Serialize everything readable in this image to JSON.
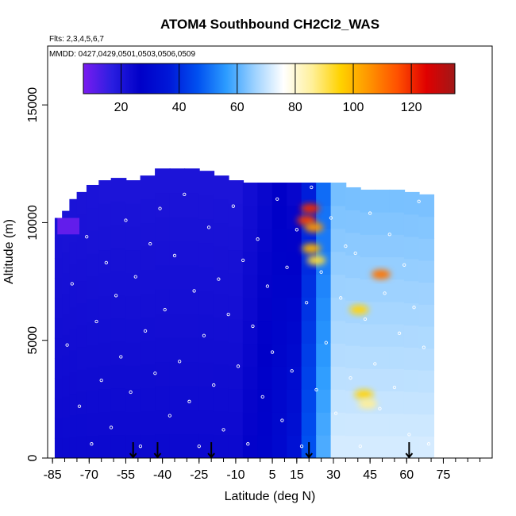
{
  "chart_data": {
    "type": "heatmap",
    "title": "ATOM4 Southbound CH2Cl2_WAS",
    "flights_note": "Flts: 2,3,4,5,6,7",
    "dates_note": "MMDD: 0427,0429,0501,0503,0506,0509",
    "xlabel": "Latitude (deg N)",
    "ylabel": "Altitude (m)",
    "xlim": [
      -87,
      95
    ],
    "ylim": [
      0,
      17500
    ],
    "x_ticks": [
      -85,
      -70,
      -55,
      -40,
      -25,
      -10,
      5,
      15,
      30,
      45,
      60,
      75
    ],
    "x_tick_labels": [
      "-85",
      "-70",
      "-55",
      "-40",
      "-25",
      "-10",
      "5",
      "15",
      "30",
      "45",
      "60",
      "75"
    ],
    "y_ticks": [
      0,
      5000,
      10000,
      15000
    ],
    "y_tick_labels": [
      "0",
      "5000",
      "10000",
      "15000"
    ],
    "colorbar": {
      "min": 7,
      "max": 135,
      "ticks": [
        20,
        40,
        60,
        80,
        100,
        120
      ],
      "tick_labels": [
        "20",
        "40",
        "60",
        "80",
        "100",
        "120"
      ],
      "colors": [
        "#7a1cf0",
        "#2a1ee0",
        "#0000c8",
        "#0018d8",
        "#0050f0",
        "#2c9cff",
        "#9ed2ff",
        "#ffffff",
        "#fff09a",
        "#ffd200",
        "#ff9400",
        "#ff5000",
        "#e00000",
        "#a01818"
      ]
    },
    "field_columns": [
      {
        "lat": -81,
        "top": 10200,
        "base": 0
      },
      {
        "lat": -78,
        "top": 10500,
        "base": 0
      },
      {
        "lat": -75,
        "top": 11000,
        "base": 0
      },
      {
        "lat": -72,
        "top": 11300,
        "base": 0
      },
      {
        "lat": -68,
        "top": 11600,
        "base": 0
      },
      {
        "lat": -63,
        "top": 11800,
        "base": 0
      },
      {
        "lat": -58,
        "top": 11900,
        "base": 0
      },
      {
        "lat": -52,
        "top": 11800,
        "base": 0
      },
      {
        "lat": -46,
        "top": 12000,
        "base": 0
      },
      {
        "lat": -40,
        "top": 12300,
        "base": 0
      },
      {
        "lat": -34,
        "top": 12300,
        "base": 0
      },
      {
        "lat": -28,
        "top": 12300,
        "base": 0
      },
      {
        "lat": -22,
        "top": 12200,
        "base": 0
      },
      {
        "lat": -16,
        "top": 12000,
        "base": 0
      },
      {
        "lat": -10,
        "top": 11800,
        "base": 0
      },
      {
        "lat": -4,
        "top": 11700,
        "base": 0
      },
      {
        "lat": 2,
        "top": 11700,
        "base": 0
      },
      {
        "lat": 8,
        "top": 11700,
        "base": 0
      },
      {
        "lat": 14,
        "top": 11700,
        "base": 0
      },
      {
        "lat": 20,
        "top": 11700,
        "base": 0
      },
      {
        "lat": 26,
        "top": 11700,
        "base": 0
      },
      {
        "lat": 32,
        "top": 11700,
        "base": 0
      },
      {
        "lat": 38,
        "top": 11500,
        "base": 0
      },
      {
        "lat": 44,
        "top": 11400,
        "base": 0
      },
      {
        "lat": 50,
        "top": 11400,
        "base": 0
      },
      {
        "lat": 56,
        "top": 11400,
        "base": 0
      },
      {
        "lat": 62,
        "top": 11300,
        "base": 0
      },
      {
        "lat": 68,
        "top": 11200,
        "base": 0
      }
    ],
    "hotspots": [
      {
        "lat": 20.5,
        "alt": 10600,
        "value": 120
      },
      {
        "lat": 19.0,
        "alt": 10100,
        "value": 118
      },
      {
        "lat": 22.0,
        "alt": 9800,
        "value": 105
      },
      {
        "lat": 21.0,
        "alt": 8900,
        "value": 100
      },
      {
        "lat": 23.0,
        "alt": 8400,
        "value": 92
      },
      {
        "lat": 49.5,
        "alt": 7800,
        "value": 110
      },
      {
        "lat": 40.5,
        "alt": 6300,
        "value": 95
      },
      {
        "lat": 42.5,
        "alt": 2700,
        "value": 95
      },
      {
        "lat": 44.0,
        "alt": 2300,
        "value": 86
      }
    ],
    "sample_points": [
      {
        "lat": -79.0,
        "alt": 4800
      },
      {
        "lat": -77.0,
        "alt": 7400
      },
      {
        "lat": -74.0,
        "alt": 2200
      },
      {
        "lat": -71.0,
        "alt": 9400
      },
      {
        "lat": -69.0,
        "alt": 600
      },
      {
        "lat": -67.0,
        "alt": 5800
      },
      {
        "lat": -65.0,
        "alt": 3300
      },
      {
        "lat": -63.0,
        "alt": 8300
      },
      {
        "lat": -61.0,
        "alt": 1300
      },
      {
        "lat": -59.0,
        "alt": 6900
      },
      {
        "lat": -57.0,
        "alt": 4300
      },
      {
        "lat": -55.0,
        "alt": 10100
      },
      {
        "lat": -53.0,
        "alt": 2800
      },
      {
        "lat": -51.0,
        "alt": 7700
      },
      {
        "lat": -49.0,
        "alt": 500
      },
      {
        "lat": -47.0,
        "alt": 5400
      },
      {
        "lat": -45.0,
        "alt": 9100
      },
      {
        "lat": -43.0,
        "alt": 3600
      },
      {
        "lat": -41.0,
        "alt": 10600
      },
      {
        "lat": -39.0,
        "alt": 6300
      },
      {
        "lat": -37.0,
        "alt": 1800
      },
      {
        "lat": -35.0,
        "alt": 8600
      },
      {
        "lat": -33.0,
        "alt": 4100
      },
      {
        "lat": -31.0,
        "alt": 11200
      },
      {
        "lat": -29.0,
        "alt": 2400
      },
      {
        "lat": -27.0,
        "alt": 7100
      },
      {
        "lat": -25.0,
        "alt": 500
      },
      {
        "lat": -23.0,
        "alt": 5200
      },
      {
        "lat": -21.0,
        "alt": 9800
      },
      {
        "lat": -19.0,
        "alt": 3100
      },
      {
        "lat": -17.0,
        "alt": 7600
      },
      {
        "lat": -15.0,
        "alt": 1200
      },
      {
        "lat": -13.0,
        "alt": 6100
      },
      {
        "lat": -11.0,
        "alt": 10700
      },
      {
        "lat": -9.0,
        "alt": 3900
      },
      {
        "lat": -7.0,
        "alt": 8400
      },
      {
        "lat": -5.0,
        "alt": 600
      },
      {
        "lat": -3.0,
        "alt": 5600
      },
      {
        "lat": -1.0,
        "alt": 9300
      },
      {
        "lat": 1.0,
        "alt": 2600
      },
      {
        "lat": 3.0,
        "alt": 7300
      },
      {
        "lat": 5.0,
        "alt": 4500
      },
      {
        "lat": 7.0,
        "alt": 11000
      },
      {
        "lat": 9.0,
        "alt": 1600
      },
      {
        "lat": 11.0,
        "alt": 8100
      },
      {
        "lat": 13.0,
        "alt": 3700
      },
      {
        "lat": 15.0,
        "alt": 9700
      },
      {
        "lat": 17.0,
        "alt": 500
      },
      {
        "lat": 19.0,
        "alt": 6600
      },
      {
        "lat": 21.0,
        "alt": 11500
      },
      {
        "lat": 23.0,
        "alt": 2900
      },
      {
        "lat": 25.0,
        "alt": 7900
      },
      {
        "lat": 27.0,
        "alt": 4900
      },
      {
        "lat": 29.0,
        "alt": 10200
      },
      {
        "lat": 31.0,
        "alt": 1900
      },
      {
        "lat": 33.0,
        "alt": 6800
      },
      {
        "lat": 35.0,
        "alt": 9000
      },
      {
        "lat": 37.0,
        "alt": 3400
      },
      {
        "lat": 39.0,
        "alt": 8700
      },
      {
        "lat": 41.0,
        "alt": 500
      },
      {
        "lat": 43.0,
        "alt": 5900
      },
      {
        "lat": 45.0,
        "alt": 10400
      },
      {
        "lat": 47.0,
        "alt": 4000
      },
      {
        "lat": 49.0,
        "alt": 2100
      },
      {
        "lat": 51.0,
        "alt": 7000
      },
      {
        "lat": 53.0,
        "alt": 9500
      },
      {
        "lat": 55.0,
        "alt": 3000
      },
      {
        "lat": 57.0,
        "alt": 5300
      },
      {
        "lat": 59.0,
        "alt": 8200
      },
      {
        "lat": 61.0,
        "alt": 1000
      },
      {
        "lat": 63.0,
        "alt": 6400
      },
      {
        "lat": 65.0,
        "alt": 10900
      },
      {
        "lat": 67.0,
        "alt": 4700
      },
      {
        "lat": 69.0,
        "alt": 600
      }
    ],
    "arrows_lat": [
      -52,
      -42,
      -20,
      20,
      61
    ]
  }
}
